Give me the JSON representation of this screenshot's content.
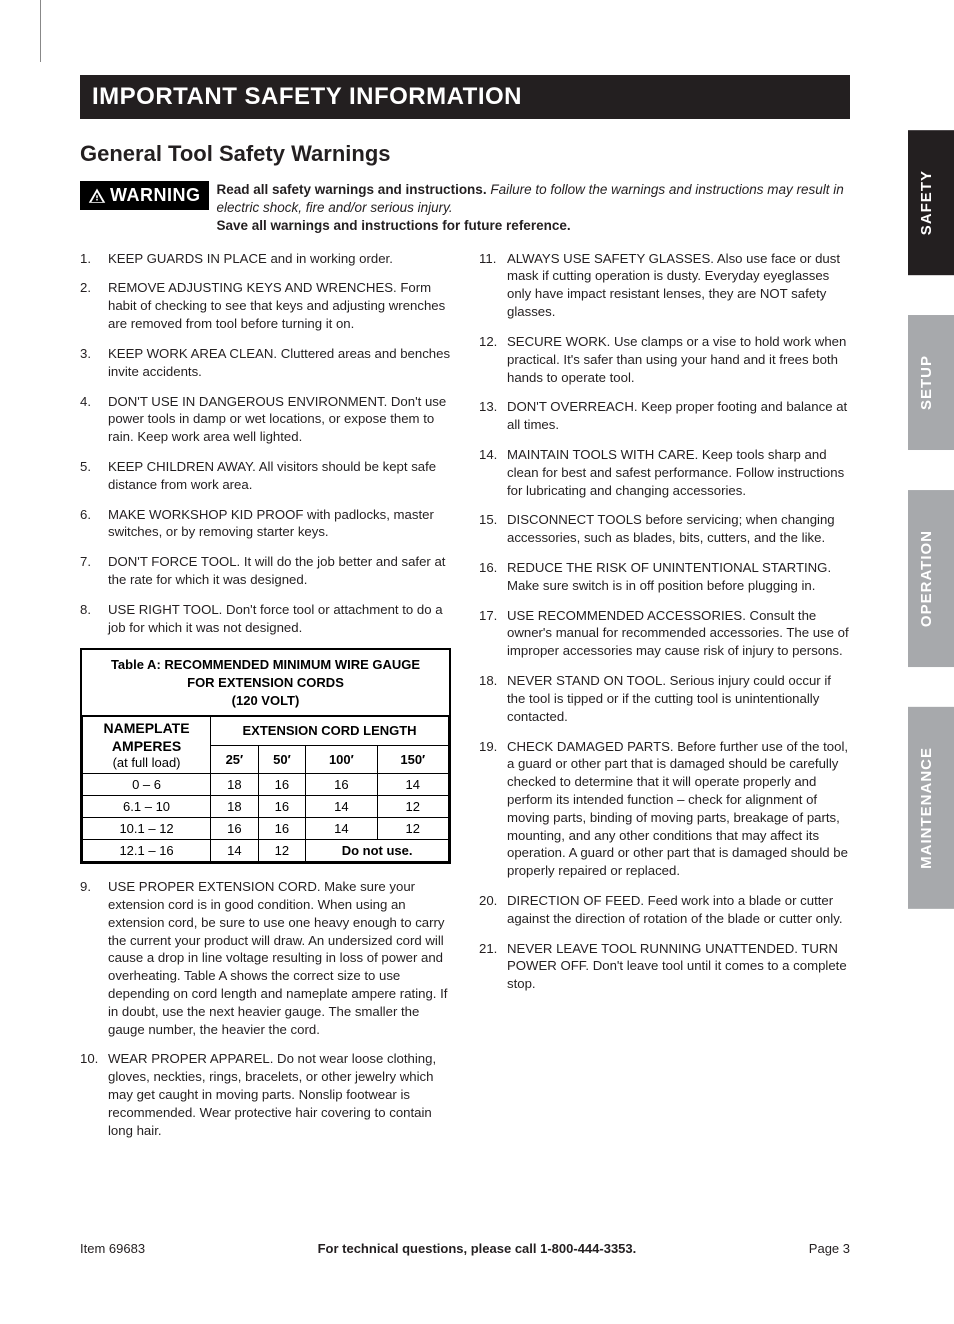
{
  "header": {
    "title": "IMPORTANT SAFETY INFORMATION"
  },
  "subheading": "General Tool Safety Warnings",
  "warning": {
    "badge": "WARNING",
    "line1_bold": "Read all safety warnings and instructions.",
    "line1_italic": "Failure to follow the warnings and instructions may result in electric shock, fire and/or serious injury.",
    "line2_bold": "Save all warnings and instructions for future reference."
  },
  "left_items_a": [
    "KEEP GUARDS IN PLACE and in working order.",
    "REMOVE ADJUSTING KEYS AND WRENCHES. Form habit of checking to see that keys and adjusting wrenches are removed from tool before turning it on.",
    "KEEP WORK AREA CLEAN. Cluttered areas and benches invite accidents.",
    "DON'T USE IN DANGEROUS ENVIRONMENT. Don't use power tools in damp or wet locations, or expose them to rain. Keep work area well lighted.",
    "KEEP CHILDREN AWAY. All visitors should be kept safe distance from work area.",
    "MAKE WORKSHOP KID PROOF with padlocks, master switches, or by removing starter keys.",
    "DON'T FORCE TOOL. It will do the job better and safer at the rate for which it was designed.",
    "USE RIGHT TOOL. Don't force tool or attachment to do a job for which it was not designed."
  ],
  "left_items_b": [
    "USE PROPER EXTENSION CORD. Make sure your extension cord is in good condition. When using an extension cord, be sure to use one heavy enough to carry the current your product will draw. An undersized cord will cause a drop in line voltage resulting in loss of power and overheating. Table A shows the correct size to use depending on cord length and nameplate ampere rating. If  in doubt, use the next heavier gauge. The smaller the gauge number, the heavier the cord.",
    "WEAR PROPER APPAREL. Do not wear loose clothing, gloves, neckties, rings, bracelets, or other jewelry which may get caught in moving parts. Nonslip footwear is recommended. Wear protective hair covering to contain long hair."
  ],
  "right_items": [
    "ALWAYS USE SAFETY GLASSES. Also use face or dust mask if cutting operation is dusty. Everyday eyeglasses only have impact resistant lenses, they are NOT safety glasses.",
    "SECURE WORK. Use clamps or a vise to hold work when practical. It's safer than using your hand and it frees both hands to operate tool.",
    "DON'T OVERREACH. Keep proper footing and balance at all times.",
    "MAINTAIN TOOLS WITH CARE. Keep tools sharp and clean for best and safest performance. Follow instructions for lubricating and changing accessories.",
    "DISCONNECT TOOLS before servicing; when changing accessories, such as blades, bits, cutters, and the like.",
    "REDUCE THE RISK OF UNINTENTIONAL STARTING. Make sure switch is in off position before plugging in.",
    "USE RECOMMENDED ACCESSORIES. Consult the owner's manual for recommended accessories. The use of improper accessories may cause risk of injury to persons.",
    "NEVER STAND ON TOOL. Serious injury could occur if the tool is tipped or if the cutting tool is unintentionally contacted.",
    "CHECK DAMAGED PARTS. Before further use of the tool, a guard or other part that is damaged should be carefully checked to determine that it will operate properly and perform its intended function – check for alignment of moving parts, binding of moving parts, breakage of parts, mounting, and any other conditions that may affect its operation. A guard or other part that is damaged should be properly repaired or replaced.",
    "DIRECTION OF FEED. Feed work into a blade or cutter against the direction of rotation of the blade or cutter only.",
    "NEVER LEAVE TOOL RUNNING UNATTENDED. TURN POWER OFF. Don't leave tool until it comes to a complete stop."
  ],
  "table": {
    "title_line1": "Table A:  RECOMMENDED MINIMUM WIRE GAUGE",
    "title_line2": "FOR EXTENSION CORDS",
    "title_line3": "(120 VOLT)",
    "nameplate_head": "NAMEPLATE AMPERES",
    "nameplate_sub": "(at full load)",
    "ext_head": "EXTENSION CORD LENGTH",
    "lengths": [
      "25′",
      "50′",
      "100′",
      "150′"
    ],
    "rows": [
      {
        "amp": "0 – 6",
        "g": [
          "18",
          "16",
          "16",
          "14"
        ]
      },
      {
        "amp": "6.1 – 10",
        "g": [
          "18",
          "16",
          "14",
          "12"
        ]
      },
      {
        "amp": "10.1 – 12",
        "g": [
          "16",
          "16",
          "14",
          "12"
        ]
      },
      {
        "amp": "12.1 – 16",
        "g": [
          "14",
          "12"
        ],
        "span_text": "Do not use."
      }
    ]
  },
  "tabs": [
    {
      "label": "SAFETY",
      "style": "dark"
    },
    {
      "label": "SETUP",
      "style": "light"
    },
    {
      "label": "OPERATION",
      "style": "light"
    },
    {
      "label": "MAINTENANCE",
      "style": "light"
    }
  ],
  "footer": {
    "left": "Item 69683",
    "center": "For technical questions, please call 1-800-444-3353.",
    "right": "Page 3"
  }
}
